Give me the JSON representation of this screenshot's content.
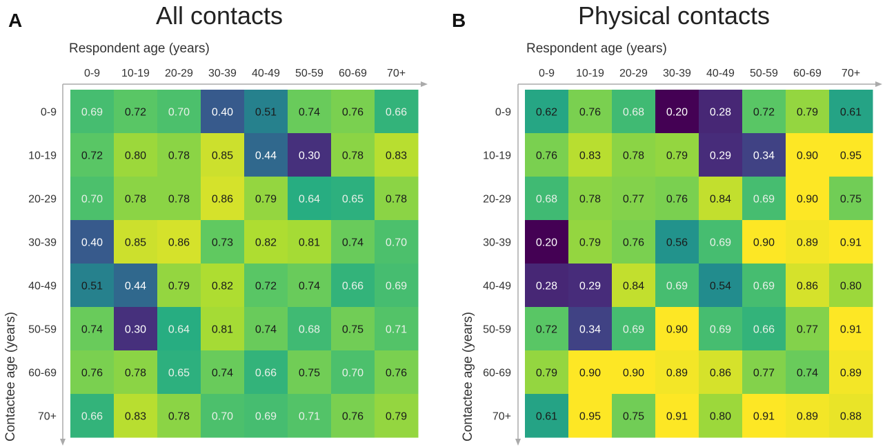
{
  "chart_data": [
    {
      "panel_label": "A",
      "type": "heatmap",
      "title": "All contacts",
      "xlabel": "Respondent age (years)",
      "ylabel": "Contactee age (years)",
      "categories": [
        "0-9",
        "10-19",
        "20-29",
        "30-39",
        "40-49",
        "50-59",
        "60-69",
        "70+"
      ],
      "values": [
        [
          0.69,
          0.72,
          0.7,
          0.4,
          0.51,
          0.74,
          0.76,
          0.66
        ],
        [
          0.72,
          0.8,
          0.78,
          0.85,
          0.44,
          0.3,
          0.78,
          0.83
        ],
        [
          0.7,
          0.78,
          0.78,
          0.86,
          0.79,
          0.64,
          0.65,
          0.78
        ],
        [
          0.4,
          0.85,
          0.86,
          0.73,
          0.82,
          0.81,
          0.74,
          0.7
        ],
        [
          0.51,
          0.44,
          0.79,
          0.82,
          0.72,
          0.74,
          0.66,
          0.69
        ],
        [
          0.74,
          0.3,
          0.64,
          0.81,
          0.74,
          0.68,
          0.75,
          0.71
        ],
        [
          0.76,
          0.78,
          0.65,
          0.74,
          0.66,
          0.75,
          0.7,
          0.76
        ],
        [
          0.66,
          0.83,
          0.78,
          0.7,
          0.69,
          0.71,
          0.76,
          0.79
        ]
      ],
      "colormap": "viridis",
      "color_range": [
        0.2,
        0.9
      ]
    },
    {
      "panel_label": "B",
      "type": "heatmap",
      "title": "Physical contacts",
      "xlabel": "Respondent age (years)",
      "ylabel": "Contactee age (years)",
      "categories": [
        "0-9",
        "10-19",
        "20-29",
        "30-39",
        "40-49",
        "50-59",
        "60-69",
        "70+"
      ],
      "values": [
        [
          0.62,
          0.76,
          0.68,
          0.2,
          0.28,
          0.72,
          0.79,
          0.61
        ],
        [
          0.76,
          0.83,
          0.78,
          0.79,
          0.29,
          0.34,
          0.9,
          0.95
        ],
        [
          0.68,
          0.78,
          0.77,
          0.76,
          0.84,
          0.69,
          0.9,
          0.75
        ],
        [
          0.2,
          0.79,
          0.76,
          0.56,
          0.69,
          0.9,
          0.89,
          0.91
        ],
        [
          0.28,
          0.29,
          0.84,
          0.69,
          0.54,
          0.69,
          0.86,
          0.8
        ],
        [
          0.72,
          0.34,
          0.69,
          0.9,
          0.69,
          0.66,
          0.77,
          0.91
        ],
        [
          0.79,
          0.9,
          0.9,
          0.89,
          0.86,
          0.77,
          0.74,
          0.89
        ],
        [
          0.61,
          0.95,
          0.75,
          0.91,
          0.8,
          0.91,
          0.89,
          0.88
        ]
      ],
      "colormap": "viridis",
      "color_range": [
        0.2,
        0.9
      ]
    }
  ]
}
